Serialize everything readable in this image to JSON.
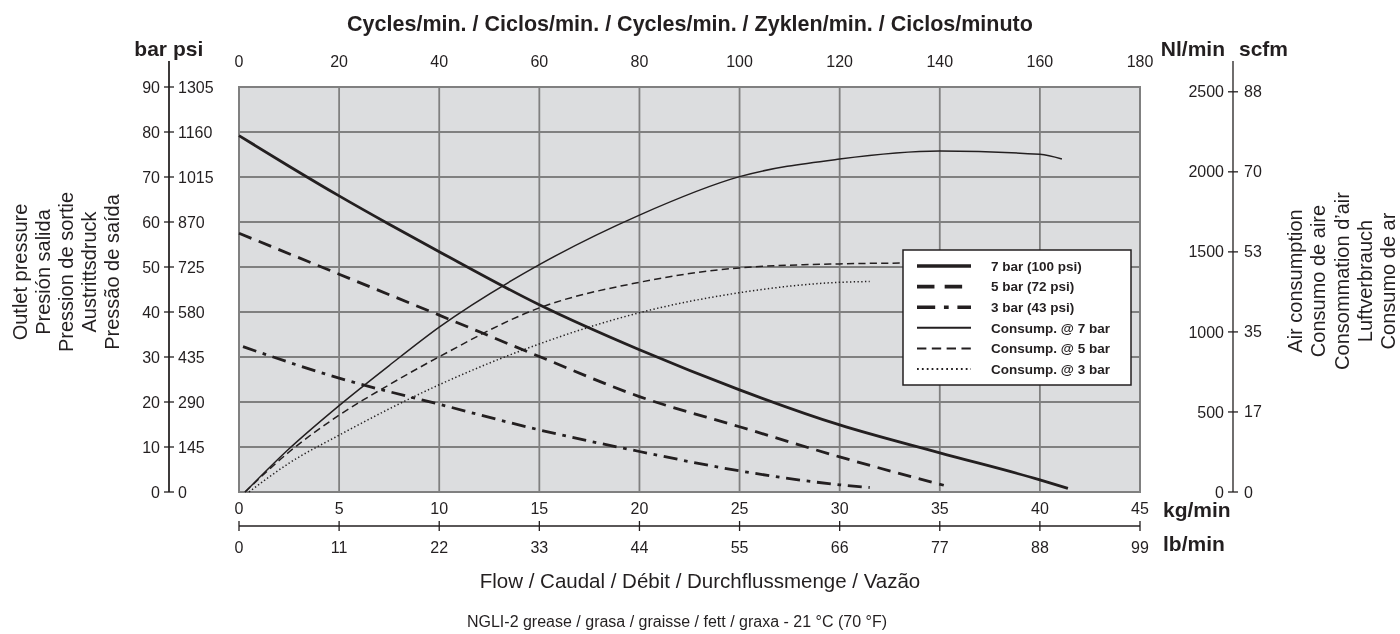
{
  "chart_data": {
    "type": "line",
    "x2label": "Cycles/min. / Ciclos/min. / Cycles/min. / Zyklen/min. / Ciclos/minuto",
    "xlabel": "Flow / Caudal / Débit / Durchflussmenge / Vazão",
    "ylabel": "Outlet pressure\nPresión salida\nPression de sortie\nAustrittsdruck\nPressão de saída",
    "y3label": "Air consumption\nConsumo de aire\nConsommation d’air\nLuftverbrauch\nConsumo de ar",
    "annotations": [
      "bar",
      "psi",
      "Nl/min",
      "scfm",
      "kg/min",
      "lb/min",
      "NGLI-2 grease / grasa / graisse / fett / graxa - 21 °C (70 °F)",
      "0",
      "11",
      "22",
      "33",
      "44",
      "55",
      "66",
      "77",
      "88",
      "99",
      "0",
      "17",
      "35",
      "53",
      "70",
      "88"
    ],
    "xlim": [
      0,
      45
    ],
    "xticks": [
      0,
      5,
      10,
      15,
      20,
      25,
      30,
      35,
      40,
      45
    ],
    "x2lim": [
      0,
      180
    ],
    "x2ticks": [
      0,
      20,
      40,
      60,
      80,
      100,
      120,
      140,
      160,
      180
    ],
    "ylim": [
      0,
      90
    ],
    "yticks": [
      0,
      10,
      20,
      30,
      40,
      50,
      60,
      70,
      80,
      90
    ],
    "y2lim": [
      0,
      1305
    ],
    "y2ticks": [
      0,
      145,
      290,
      435,
      580,
      725,
      870,
      1015,
      1160,
      1305
    ],
    "y3lim": [
      0,
      2530
    ],
    "y3ticks": [
      0,
      500,
      1000,
      1500,
      2000,
      2500
    ],
    "grid": true,
    "legend": "right",
    "series": [
      {
        "name": "7 bar (100 psi)",
        "color": "#231f20",
        "line_style": "solid",
        "x": [
          0,
          2.5,
          5,
          7.5,
          10,
          15,
          20,
          25,
          30,
          35,
          40,
          41.4
        ],
        "values": [
          79.2,
          72.4,
          65.8,
          59.5,
          53.4,
          41.6,
          31.6,
          22.7,
          14.9,
          8.7,
          2.7,
          0.8
        ]
      },
      {
        "name": "5 bar (72 psi)",
        "color": "#231f20",
        "line_style": "dashed",
        "x": [
          0,
          5,
          10,
          15,
          20,
          25,
          30,
          35.2
        ],
        "values": [
          57.5,
          48.4,
          39.3,
          30.1,
          21.2,
          14.5,
          7.8,
          1.5
        ]
      },
      {
        "name": "3 bar (43 psi)",
        "color": "#231f20",
        "line_style": "dashdot",
        "x": [
          0.2,
          5,
          10,
          15,
          20,
          25,
          30,
          31.5
        ],
        "values": [
          32.3,
          25.3,
          19.5,
          13.8,
          9.0,
          4.7,
          1.6,
          1.0
        ]
      },
      {
        "name": "Consump. @ 7 bar",
        "color": "#231f20",
        "line_style": "solid",
        "axis": "y3",
        "x": [
          0.3,
          2.5,
          5,
          7.5,
          10,
          15,
          20,
          25,
          30,
          35,
          40,
          41.1
        ],
        "values": [
          0,
          270,
          540,
          790,
          1030,
          1420,
          1730,
          1970,
          2080,
          2130,
          2110,
          2080
        ]
      },
      {
        "name": "Consump. @ 5 bar",
        "color": "#231f20",
        "line_style": "dashed",
        "axis": "y3",
        "x": [
          0.3,
          2.5,
          5,
          7.5,
          10,
          15,
          20,
          25,
          30,
          33
        ],
        "values": [
          0,
          250,
          480,
          670,
          845,
          1150,
          1310,
          1400,
          1425,
          1430
        ]
      },
      {
        "name": "Consump. @ 3 bar",
        "color": "#231f20",
        "line_style": "dotted",
        "axis": "y3",
        "x": [
          0.5,
          2.5,
          5,
          10,
          15,
          20,
          25,
          30,
          31.5
        ],
        "values": [
          0,
          180,
          355,
          670,
          925,
          1120,
          1245,
          1310,
          1315
        ]
      }
    ]
  }
}
